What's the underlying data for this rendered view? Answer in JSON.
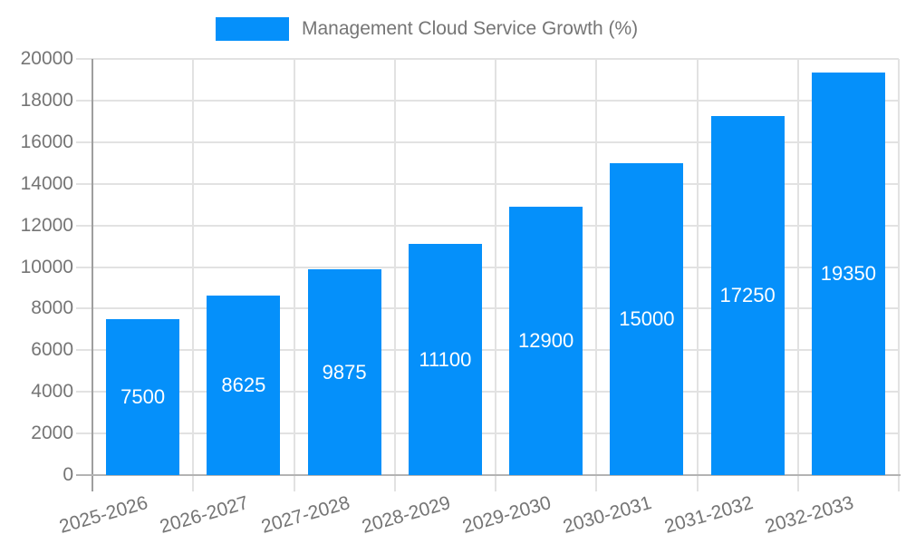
{
  "legend": {
    "label": "Management Cloud Service Growth (%)"
  },
  "chart_data": {
    "type": "bar",
    "title": "",
    "xlabel": "",
    "ylabel": "",
    "categories": [
      "2025-2026",
      "2026-2027",
      "2027-2028",
      "2028-2029",
      "2029-2030",
      "2030-2031",
      "2031-2032",
      "2032-2033"
    ],
    "values": [
      7500,
      8625,
      9875,
      11100,
      12900,
      15000,
      17250,
      19350
    ],
    "series_name": "Management Cloud Service Growth (%)",
    "value_labels": [
      "7500",
      "8625",
      "9875",
      "11100",
      "12900",
      "15000",
      "17250",
      "19350"
    ],
    "ylim": [
      0,
      20000
    ],
    "ytick_step": 2000,
    "ytick_labels": [
      "0",
      "2000",
      "4000",
      "6000",
      "8000",
      "10000",
      "12000",
      "14000",
      "16000",
      "18000",
      "20000"
    ],
    "grid": true,
    "legend_position": "top",
    "colors": {
      "bar": "#0590fa",
      "bar_value_label": "#ffffff",
      "axis_text": "#757575",
      "grid_line": "#e2e2e2",
      "y_axis_line": "#9e9e9e",
      "x_axis_line": "#b3b3b3"
    }
  }
}
